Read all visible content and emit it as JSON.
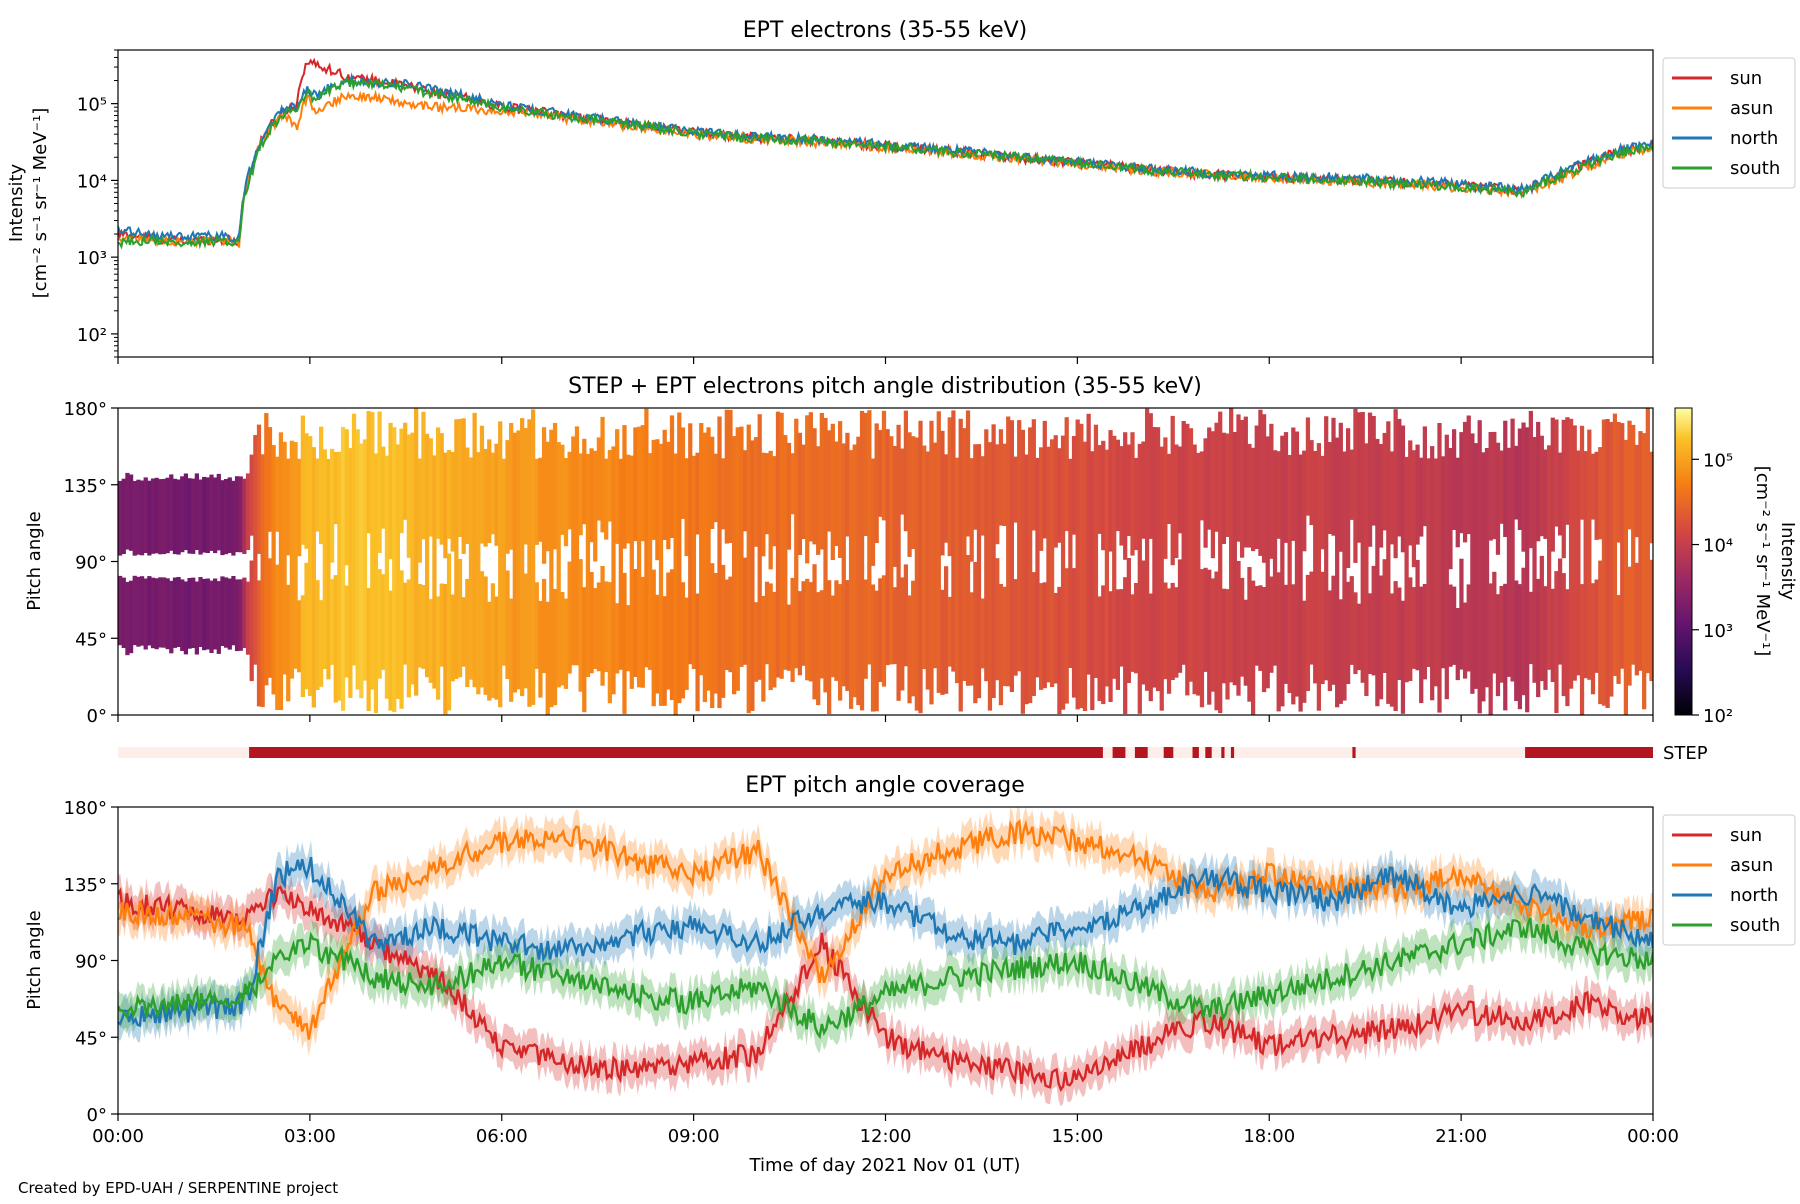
{
  "figure": {
    "credit": "Created by EPD-UAH / SERPENTINE project",
    "xlabel": "Time of day 2021 Nov 01 (UT)",
    "xticks": [
      "00:00",
      "03:00",
      "06:00",
      "09:00",
      "12:00",
      "15:00",
      "18:00",
      "21:00",
      "00:00"
    ]
  },
  "chart_data": [
    {
      "id": "intensity",
      "type": "line",
      "title": "EPT electrons (35-55 keV)",
      "ylabel_line1": "Intensity",
      "ylabel_line2": "[cm⁻² s⁻¹ sr⁻¹ MeV⁻¹]",
      "yscale": "log",
      "ylim": [
        50,
        500000
      ],
      "xlim_hours": [
        0,
        24
      ],
      "yticks": [
        {
          "value": 100,
          "label": "10²"
        },
        {
          "value": 1000,
          "label": "10³"
        },
        {
          "value": 10000,
          "label": "10⁴"
        },
        {
          "value": 100000,
          "label": "10⁵"
        }
      ],
      "x_hours": [
        0,
        0.5,
        1.0,
        1.5,
        1.9,
        2.1,
        2.3,
        2.6,
        2.8,
        2.95,
        3.1,
        3.3,
        3.6,
        4.0,
        4.5,
        5.0,
        6.0,
        7.0,
        8.0,
        9.0,
        10.0,
        11.0,
        12.0,
        13.0,
        14.0,
        15.0,
        16.0,
        17.0,
        18.0,
        19.0,
        20.0,
        21.0,
        22.0,
        22.5,
        23.0,
        23.5,
        24.0
      ],
      "series": [
        {
          "name": "sun",
          "color": "#d62728",
          "values": [
            2000,
            1800,
            1600,
            1700,
            1600,
            15000,
            40000,
            80000,
            100000,
            350000,
            320000,
            280000,
            220000,
            200000,
            170000,
            140000,
            90000,
            70000,
            55000,
            42000,
            36000,
            33000,
            28000,
            24000,
            20000,
            17000,
            14000,
            12000,
            11000,
            10500,
            9500,
            8500,
            7500,
            11000,
            17000,
            24000,
            28000
          ]
        },
        {
          "name": "asun",
          "color": "#ff7f0e",
          "values": [
            1800,
            1700,
            1600,
            1600,
            1500,
            14000,
            38000,
            70000,
            50000,
            120000,
            80000,
            100000,
            130000,
            120000,
            100000,
            90000,
            80000,
            65000,
            50000,
            40000,
            34000,
            31000,
            27000,
            23000,
            19500,
            16500,
            13500,
            12000,
            11000,
            10000,
            9000,
            8000,
            7000,
            10000,
            15000,
            22000,
            26000
          ]
        },
        {
          "name": "north",
          "color": "#1f77b4",
          "values": [
            2200,
            2000,
            1800,
            1900,
            1800,
            16000,
            42000,
            85000,
            95000,
            150000,
            130000,
            160000,
            200000,
            190000,
            180000,
            150000,
            95000,
            72000,
            56000,
            44000,
            37000,
            34000,
            29000,
            25000,
            21000,
            17500,
            14500,
            12500,
            11500,
            11000,
            10000,
            9000,
            7500,
            12000,
            18000,
            25000,
            29000
          ]
        },
        {
          "name": "south",
          "color": "#2ca02c",
          "values": [
            1500,
            1700,
            1500,
            1600,
            1500,
            13000,
            36000,
            75000,
            80000,
            140000,
            110000,
            150000,
            190000,
            180000,
            160000,
            130000,
            88000,
            68000,
            54000,
            41000,
            35000,
            32000,
            27500,
            23500,
            20000,
            16800,
            13800,
            12000,
            11000,
            10200,
            9200,
            8200,
            7000,
            11000,
            16000,
            23000,
            27000
          ]
        }
      ],
      "legend": "right-outside-top"
    },
    {
      "id": "pad",
      "type": "heatmap",
      "title": "STEP + EPT electrons pitch angle distribution (35-55 keV)",
      "ylabel": "Pitch angle",
      "ylim": [
        0,
        180
      ],
      "xlim_hours": [
        0,
        24
      ],
      "yticks": [
        {
          "value": 0,
          "label": "0°"
        },
        {
          "value": 45,
          "label": "45°"
        },
        {
          "value": 90,
          "label": "90°"
        },
        {
          "value": 135,
          "label": "135°"
        },
        {
          "value": 180,
          "label": "180°"
        }
      ],
      "colorbar": {
        "scale": "log",
        "range": [
          100,
          400000
        ],
        "label_line1": "Intensity",
        "label_line2": "[cm⁻² s⁻¹ sr⁻¹ MeV⁻¹]",
        "ticks": [
          {
            "value": 100,
            "label": "10²"
          },
          {
            "value": 1000,
            "label": "10³"
          },
          {
            "value": 10000,
            "label": "10⁴"
          },
          {
            "value": 100000,
            "label": "10⁵"
          }
        ]
      }
    },
    {
      "id": "step-coverage",
      "type": "bar",
      "label": "STEP",
      "on_color": "#b3161f",
      "off_color": "#fdeeea",
      "coverage_intervals_hours": [
        [
          2.05,
          15.4
        ],
        [
          15.55,
          15.75
        ],
        [
          15.9,
          16.1
        ],
        [
          16.35,
          16.5
        ],
        [
          16.8,
          16.9
        ],
        [
          17.0,
          17.1
        ],
        [
          17.25,
          17.3
        ],
        [
          17.4,
          17.45
        ],
        [
          19.3,
          19.35
        ],
        [
          22.0,
          24.0
        ]
      ]
    },
    {
      "id": "coverage",
      "type": "line",
      "title": "EPT pitch angle coverage",
      "ylabel": "Pitch angle",
      "ylim": [
        0,
        180
      ],
      "xlim_hours": [
        0,
        24
      ],
      "yticks": [
        {
          "value": 0,
          "label": "0°"
        },
        {
          "value": 45,
          "label": "45°"
        },
        {
          "value": 90,
          "label": "90°"
        },
        {
          "value": 135,
          "label": "135°"
        },
        {
          "value": 180,
          "label": "180°"
        }
      ],
      "x_hours": [
        0,
        1,
        2,
        2.5,
        3,
        4,
        5,
        6,
        7,
        8,
        9,
        10,
        11,
        12,
        13,
        14,
        15,
        16,
        17,
        18,
        19,
        20,
        21,
        22,
        23,
        24
      ],
      "series": [
        {
          "name": "sun",
          "color": "#d62728",
          "values": [
            125,
            120,
            115,
            130,
            120,
            100,
            80,
            40,
            30,
            25,
            30,
            35,
            100,
            45,
            30,
            25,
            20,
            40,
            55,
            40,
            45,
            50,
            60,
            55,
            65,
            55
          ]
        },
        {
          "name": "asun",
          "color": "#ff7f0e",
          "values": [
            120,
            115,
            110,
            60,
            50,
            130,
            145,
            160,
            165,
            150,
            140,
            155,
            80,
            140,
            155,
            165,
            160,
            150,
            130,
            140,
            135,
            130,
            140,
            120,
            110,
            115
          ]
        },
        {
          "name": "north",
          "color": "#1f77b4",
          "values": [
            55,
            60,
            65,
            140,
            145,
            100,
            110,
            100,
            95,
            105,
            110,
            100,
            120,
            125,
            105,
            100,
            110,
            120,
            140,
            130,
            125,
            140,
            120,
            130,
            115,
            100
          ]
        },
        {
          "name": "south",
          "color": "#2ca02c",
          "values": [
            60,
            65,
            70,
            90,
            100,
            80,
            75,
            90,
            80,
            70,
            65,
            75,
            50,
            70,
            80,
            85,
            90,
            75,
            60,
            70,
            80,
            90,
            100,
            110,
            95,
            90
          ]
        }
      ],
      "band_halfwidth_deg": 10,
      "legend": "right-outside-top"
    }
  ]
}
